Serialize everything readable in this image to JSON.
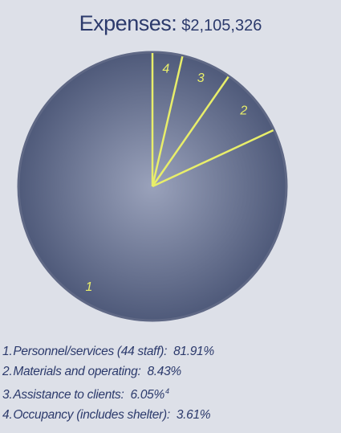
{
  "title": {
    "label": "Expenses:",
    "amount": "$2,105,326"
  },
  "chart_data": {
    "type": "pie",
    "title": "Expenses: $2,105,326",
    "slices": [
      {
        "number": "1",
        "label": "Personnel/services (44 staff)",
        "value": 81.91,
        "display": "81.91%",
        "note": ""
      },
      {
        "number": "2",
        "label": "Materials and operating",
        "value": 8.43,
        "display": "8.43%",
        "note": ""
      },
      {
        "number": "3",
        "label": "Assistance to clients",
        "value": 6.05,
        "display": "6.05%",
        "note": "4"
      },
      {
        "number": "4",
        "label": "Occupancy (includes shelter)",
        "value": 3.61,
        "display": "3.61%",
        "note": ""
      }
    ],
    "colors": {
      "fill_center": "#9aa2bb",
      "fill_edge": "#4f5a7a",
      "rim": "#5f6885",
      "divider": "#e8ee6a",
      "slice_number": "#e8ee6a"
    },
    "legend_placement": "bottom-left"
  }
}
